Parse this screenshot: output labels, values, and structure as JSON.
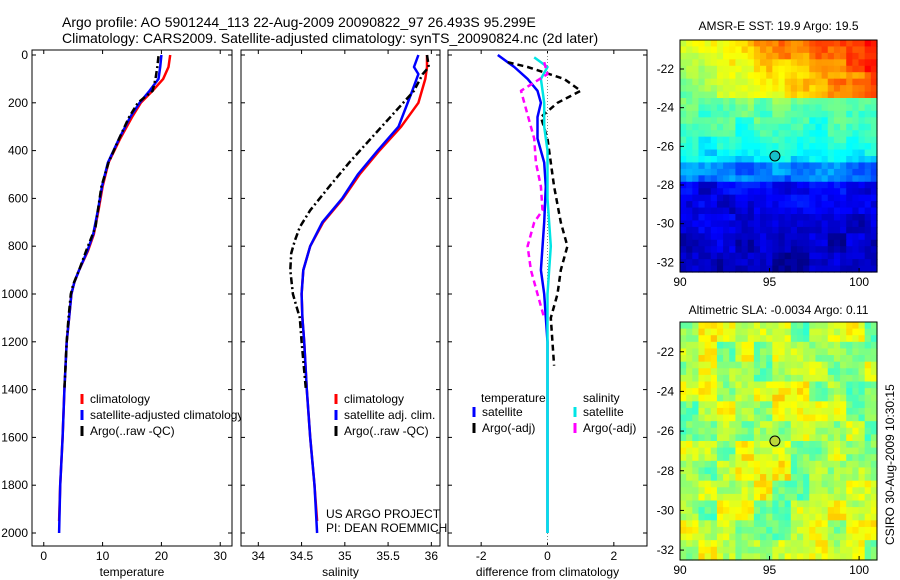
{
  "header": {
    "line1": "Argo profile: AO 5901244_113 22-Aug-2009 20090822_97 26.493S 95.299E",
    "line2": "Climatology: CARS2009. Satellite-adjusted climatology: synTS_20090824.nc (2d later)"
  },
  "side_stamp": "CSIRO 30-Aug-2009 10:30:15",
  "project_credit": [
    "US ARGO PROJECT",
    "PI: DEAN ROEMMICH"
  ],
  "colors": {
    "climatology": "#ff0000",
    "satellite": "#0000ff",
    "argo": "#000000",
    "satellite_salinity": "#00e5e5",
    "argo_salinity": "#ff00ff"
  },
  "chart_data": [
    {
      "id": "temperature",
      "type": "line",
      "xlabel": "temperature",
      "ylabel": "",
      "xlim": [
        -2,
        32
      ],
      "ylim": [
        2100,
        0
      ],
      "xticks": [
        0,
        10,
        20,
        30
      ],
      "yticks": [
        0,
        200,
        400,
        600,
        800,
        1000,
        1200,
        1400,
        1600,
        1800,
        2000
      ],
      "legend_position": "lower-left",
      "series": [
        {
          "name": "climatology",
          "color": "#ff0000",
          "dash": "solid",
          "points": [
            [
              21.5,
              0
            ],
            [
              21.2,
              50
            ],
            [
              20.3,
              100
            ],
            [
              18.5,
              150
            ],
            [
              16.5,
              200
            ],
            [
              15,
              260
            ],
            [
              13,
              350
            ],
            [
              11,
              450
            ],
            [
              10,
              550
            ],
            [
              9.3,
              650
            ],
            [
              8.5,
              750
            ],
            [
              7.5,
              820
            ],
            [
              6,
              900
            ],
            [
              5.2,
              950
            ],
            [
              4.7,
              1000
            ],
            [
              4.3,
              1100
            ],
            [
              3.9,
              1200
            ],
            [
              3.5,
              1400
            ],
            [
              3.2,
              1600
            ],
            [
              2.8,
              1800
            ],
            [
              2.6,
              1950
            ]
          ]
        },
        {
          "name": "satellite-adjusted climatology",
          "color": "#0000ff",
          "dash": "solid",
          "points": [
            [
              20,
              0
            ],
            [
              19.8,
              50
            ],
            [
              19.5,
              100
            ],
            [
              18,
              150
            ],
            [
              16.3,
              200
            ],
            [
              14.7,
              260
            ],
            [
              12.8,
              350
            ],
            [
              10.9,
              450
            ],
            [
              9.9,
              550
            ],
            [
              9.2,
              650
            ],
            [
              8.4,
              750
            ],
            [
              7.4,
              820
            ],
            [
              6,
              900
            ],
            [
              5.2,
              950
            ],
            [
              4.7,
              1000
            ],
            [
              4.3,
              1100
            ],
            [
              3.9,
              1200
            ],
            [
              3.5,
              1400
            ],
            [
              3.2,
              1600
            ],
            [
              2.8,
              1800
            ],
            [
              2.6,
              2000
            ]
          ]
        },
        {
          "name": "Argo(..raw -QC)",
          "color": "#000000",
          "dash": "dashdot",
          "points": [
            [
              19.5,
              5
            ],
            [
              19.3,
              50
            ],
            [
              19,
              100
            ],
            [
              18.5,
              150
            ],
            [
              16,
              200
            ],
            [
              14.5,
              260
            ],
            [
              12.8,
              350
            ],
            [
              11,
              450
            ],
            [
              9.8,
              550
            ],
            [
              9.2,
              650
            ],
            [
              8.8,
              720
            ],
            [
              7.2,
              820
            ],
            [
              6,
              900
            ],
            [
              5,
              960
            ],
            [
              4.6,
              1000
            ],
            [
              4.2,
              1100
            ],
            [
              3.9,
              1200
            ],
            [
              3.5,
              1400
            ]
          ]
        }
      ]
    },
    {
      "id": "salinity",
      "type": "line",
      "xlabel": "salinity",
      "ylabel": "",
      "xlim": [
        33.8,
        36.1
      ],
      "ylim": [
        2100,
        0
      ],
      "xticks": [
        34,
        34.5,
        35,
        35.5,
        36
      ],
      "legend_position": "lower-left",
      "series": [
        {
          "name": "climatology",
          "color": "#ff0000",
          "dash": "solid",
          "points": [
            [
              35.95,
              0
            ],
            [
              35.95,
              50
            ],
            [
              35.93,
              100
            ],
            [
              35.85,
              200
            ],
            [
              35.65,
              300
            ],
            [
              35.4,
              400
            ],
            [
              35.17,
              500
            ],
            [
              34.98,
              600
            ],
            [
              34.75,
              700
            ],
            [
              34.6,
              800
            ],
            [
              34.52,
              900
            ],
            [
              34.5,
              1000
            ],
            [
              34.51,
              1100
            ],
            [
              34.53,
              1200
            ],
            [
              34.56,
              1400
            ],
            [
              34.6,
              1600
            ],
            [
              34.65,
              1800
            ],
            [
              34.68,
              1950
            ]
          ]
        },
        {
          "name": "satellite adj. clim.",
          "color": "#0000ff",
          "dash": "solid",
          "points": [
            [
              35.85,
              0
            ],
            [
              35.8,
              50
            ],
            [
              35.85,
              80
            ],
            [
              35.78,
              150
            ],
            [
              35.62,
              300
            ],
            [
              35.38,
              400
            ],
            [
              35.15,
              500
            ],
            [
              34.97,
              600
            ],
            [
              34.74,
              700
            ],
            [
              34.6,
              800
            ],
            [
              34.52,
              900
            ],
            [
              34.5,
              1000
            ],
            [
              34.51,
              1100
            ],
            [
              34.53,
              1200
            ],
            [
              34.56,
              1400
            ],
            [
              34.6,
              1600
            ],
            [
              34.65,
              1800
            ],
            [
              34.68,
              2000
            ]
          ]
        },
        {
          "name": "Argo(..raw -QC)",
          "color": "#000000",
          "dash": "dashdot",
          "points": [
            [
              35.95,
              0
            ],
            [
              35.97,
              50
            ],
            [
              35.9,
              80
            ],
            [
              35.8,
              150
            ],
            [
              35.55,
              250
            ],
            [
              35.3,
              350
            ],
            [
              35.05,
              450
            ],
            [
              34.82,
              550
            ],
            [
              34.6,
              650
            ],
            [
              34.48,
              720
            ],
            [
              34.42,
              780
            ],
            [
              34.38,
              830
            ],
            [
              34.37,
              900
            ],
            [
              34.4,
              1000
            ],
            [
              34.48,
              1100
            ],
            [
              34.5,
              1200
            ],
            [
              34.55,
              1400
            ]
          ]
        }
      ]
    },
    {
      "id": "difference",
      "type": "line",
      "xlabel": "difference from climatology",
      "ylabel": "",
      "xlim": [
        -3,
        3
      ],
      "ylim": [
        2100,
        0
      ],
      "xticks": [
        -2,
        0,
        2
      ],
      "legend_position": "lower",
      "legend_headers": [
        "temperature",
        "salinity"
      ],
      "series": [
        {
          "name": "satellite",
          "group": "temperature",
          "color": "#0000ff",
          "dash": "solid",
          "points": [
            [
              -1.5,
              0
            ],
            [
              -1,
              50
            ],
            [
              -0.6,
              100
            ],
            [
              -0.3,
              150
            ],
            [
              -0.2,
              200
            ],
            [
              -0.3,
              260
            ],
            [
              -0.3,
              350
            ],
            [
              -0.1,
              450
            ],
            [
              -0.05,
              550
            ],
            [
              -0.1,
              700
            ],
            [
              -0.2,
              900
            ],
            [
              -0.1,
              1000
            ],
            [
              0,
              1200
            ],
            [
              0,
              1400
            ],
            [
              0,
              1600
            ],
            [
              0,
              1800
            ],
            [
              0,
              2000
            ]
          ]
        },
        {
          "name": "Argo(-adj)",
          "group": "temperature",
          "color": "#000000",
          "dash": "dashed",
          "points": [
            [
              -1.2,
              30
            ],
            [
              -0.6,
              50
            ],
            [
              0.5,
              100
            ],
            [
              1,
              150
            ],
            [
              0.3,
              200
            ],
            [
              -0.2,
              260
            ],
            [
              0,
              350
            ],
            [
              0.1,
              450
            ],
            [
              0.2,
              550
            ],
            [
              0.4,
              700
            ],
            [
              0.6,
              800
            ],
            [
              0.4,
              900
            ],
            [
              0.3,
              1000
            ],
            [
              0.1,
              1100
            ],
            [
              0.2,
              1300
            ]
          ]
        },
        {
          "name": "satellite",
          "group": "salinity",
          "color": "#00e5e5",
          "dash": "solid",
          "points": [
            [
              -0.4,
              10
            ],
            [
              0,
              50
            ],
            [
              -0.2,
              100
            ],
            [
              -0.1,
              200
            ],
            [
              -0.1,
              300
            ],
            [
              0,
              400
            ],
            [
              0,
              600
            ],
            [
              0.1,
              800
            ],
            [
              0,
              1000
            ],
            [
              0,
              1200
            ],
            [
              0,
              1400
            ],
            [
              0,
              1600
            ],
            [
              0,
              1800
            ],
            [
              0,
              2000
            ]
          ]
        },
        {
          "name": "Argo(-adj)",
          "group": "salinity",
          "color": "#ff00ff",
          "dash": "dashed",
          "points": [
            [
              -0.1,
              30
            ],
            [
              0,
              80
            ],
            [
              -0.8,
              150
            ],
            [
              -0.6,
              250
            ],
            [
              -0.4,
              350
            ],
            [
              -0.35,
              450
            ],
            [
              -0.2,
              550
            ],
            [
              -0.15,
              650
            ],
            [
              -0.4,
              700
            ],
            [
              -0.6,
              800
            ],
            [
              -0.5,
              900
            ],
            [
              -0.3,
              1000
            ],
            [
              -0.1,
              1100
            ]
          ]
        }
      ]
    },
    {
      "id": "sst_map",
      "type": "heatmap",
      "title": "AMSR-E SST: 19.9 Argo: 19.5",
      "xlim": [
        90,
        101
      ],
      "ylim": [
        -32.5,
        -20.5
      ],
      "xticks": [
        90,
        95,
        100
      ],
      "yticks": [
        -22,
        -24,
        -26,
        -28,
        -30,
        -32
      ],
      "marker": {
        "lon": 95.3,
        "lat": -26.5
      },
      "colormap": "jet"
    },
    {
      "id": "sla_map",
      "type": "heatmap",
      "title": "Altimetric SLA: -0.0034 Argo: 0.11",
      "xlim": [
        90,
        101
      ],
      "ylim": [
        -32.5,
        -20.5
      ],
      "xticks": [
        90,
        95,
        100
      ],
      "yticks": [
        -22,
        -24,
        -26,
        -28,
        -30,
        -32
      ],
      "marker": {
        "lon": 95.3,
        "lat": -26.5
      },
      "colormap": "jet"
    }
  ]
}
